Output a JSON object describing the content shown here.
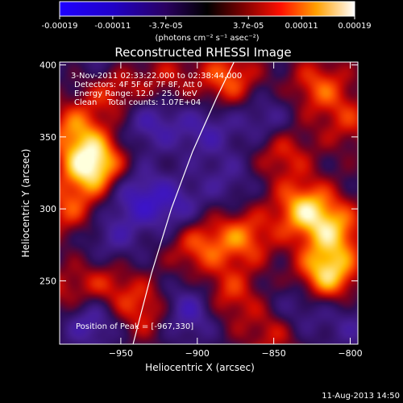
{
  "chart_data": {
    "type": "heatmap",
    "title": "Reconstructed RHESSI Image",
    "xlabel": "Heliocentric X (arcsec)",
    "ylabel": "Heliocentric Y (arcsec)",
    "xlim": [
      -990,
      -795
    ],
    "ylim": [
      206,
      402
    ],
    "xticks": [
      -950,
      -900,
      -850,
      -800
    ],
    "yticks": [
      250,
      300,
      350,
      400
    ],
    "annotations": [
      "3-Nov-2011 02:33:22.000 to 02:38:44.000",
      "Detectors: 4F 5F 6F 7F 8F, Att 0",
      "Energy Range: 12.0 - 25.0 keV",
      "Clean    Total counts: 1.07E+04"
    ],
    "peak_label": "Position of Peak = [-967,330]",
    "peak": [
      -967,
      330
    ],
    "colorbar": {
      "ticks": [
        "-0.00019",
        "-0.00011",
        "-3.7e-05",
        "3.7e-05",
        "0.00011",
        "0.00019"
      ],
      "unit_label": "(photons cm⁻² s⁻¹ asec⁻²)",
      "range": [
        -0.00019,
        0.00019
      ]
    },
    "limb": [
      [
        -942,
        206
      ],
      [
        -930,
        255
      ],
      [
        -917,
        300
      ],
      [
        -903,
        340
      ],
      [
        -887,
        378
      ],
      [
        -876,
        402
      ]
    ],
    "sources": [
      {
        "x": -968,
        "y": 330,
        "v": 1.0
      },
      {
        "x": -980,
        "y": 355,
        "v": 0.55
      },
      {
        "x": -985,
        "y": 300,
        "v": 0.45
      },
      {
        "x": -955,
        "y": 385,
        "v": 0.5
      },
      {
        "x": -880,
        "y": 390,
        "v": 0.55
      },
      {
        "x": -820,
        "y": 385,
        "v": 0.5
      },
      {
        "x": -845,
        "y": 340,
        "v": 0.45
      },
      {
        "x": -830,
        "y": 300,
        "v": 0.75
      },
      {
        "x": -810,
        "y": 285,
        "v": 0.6
      },
      {
        "x": -815,
        "y": 255,
        "v": 0.85
      },
      {
        "x": -870,
        "y": 280,
        "v": 0.55
      },
      {
        "x": -900,
        "y": 275,
        "v": 0.5
      },
      {
        "x": -880,
        "y": 240,
        "v": 0.45
      },
      {
        "x": -935,
        "y": 230,
        "v": 0.45
      },
      {
        "x": -960,
        "y": 245,
        "v": 0.4
      },
      {
        "x": -985,
        "y": 240,
        "v": 0.35
      },
      {
        "x": -850,
        "y": 215,
        "v": 0.4
      },
      {
        "x": -920,
        "y": 390,
        "v": 0.3
      },
      {
        "x": -800,
        "y": 360,
        "v": 0.35
      },
      {
        "x": -940,
        "y": 310,
        "v": -0.45
      },
      {
        "x": -915,
        "y": 300,
        "v": -0.4
      },
      {
        "x": -970,
        "y": 225,
        "v": -0.55
      },
      {
        "x": -905,
        "y": 230,
        "v": -0.5
      },
      {
        "x": -930,
        "y": 360,
        "v": -0.4
      },
      {
        "x": -955,
        "y": 280,
        "v": -0.3
      },
      {
        "x": -855,
        "y": 360,
        "v": -0.35
      },
      {
        "x": -835,
        "y": 230,
        "v": -0.35
      },
      {
        "x": -800,
        "y": 220,
        "v": -0.25
      },
      {
        "x": -960,
        "y": 400,
        "v": -0.3
      },
      {
        "x": -895,
        "y": 355,
        "v": -0.35
      },
      {
        "x": -880,
        "y": 320,
        "v": -0.25
      }
    ]
  },
  "footer": {
    "date": "11-Aug-2013 14:50"
  }
}
